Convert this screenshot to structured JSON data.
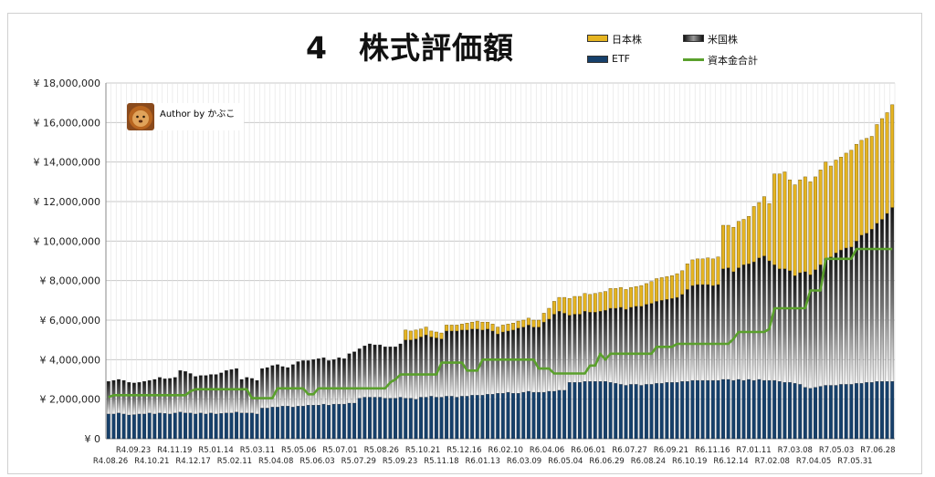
{
  "title": "4　株式評価額",
  "legend": {
    "japan": "日本株",
    "us": "米国株",
    "etf": "ETF",
    "capital": "資本金合計"
  },
  "author": {
    "label": "Author by かぶこ",
    "avatar_icon": "lion-avatar-icon"
  },
  "colors": {
    "japan": "#e5b421",
    "us_dark": "#1a1a1a",
    "us_light": "#f2f2f2",
    "etf": "#16406b",
    "capital": "#5aa02c"
  },
  "chart_data": {
    "type": "bar",
    "stacked": true,
    "ylim": [
      0,
      18000000
    ],
    "y_ticks": [
      "¥ 0",
      "¥ 2,000,000",
      "¥ 4,000,000",
      "¥ 6,000,000",
      "¥ 8,000,000",
      "¥ 10,000,000",
      "¥ 12,000,000",
      "¥ 14,000,000",
      "¥ 16,000,000",
      "¥ 18,000,000"
    ],
    "x_tick_labels": {
      "row1": [
        "R4.09.23",
        "R4.11.19",
        "R5.01.14",
        "R5.03.11",
        "R5.05.06",
        "R5.07.01",
        "R5.08.26",
        "R5.10.21",
        "R5.12.16",
        "R6.02.10",
        "R6.04.06",
        "R6.06.01",
        "R6.07.27",
        "R6.09.21",
        "R6.11.16",
        "R7.01.11",
        "R7.03.08",
        "R7.05.03",
        "R7.06.28"
      ],
      "row2": [
        "R4.08.26",
        "R4.10.21",
        "R4.12.17",
        "R5.02.11",
        "R5.04.08",
        "R5.06.03",
        "R5.07.29",
        "R5.09.23",
        "R5.11.18",
        "R6.01.13",
        "R6.03.09",
        "R6.05.04",
        "R6.06.29",
        "R6.08.24",
        "R6.10.19",
        "R6.12.14",
        "R7.02.08",
        "R7.04.05",
        "R7.05.31"
      ]
    },
    "series": [
      {
        "name": "ETF",
        "values": [
          1250000,
          1250000,
          1300000,
          1250000,
          1200000,
          1220000,
          1250000,
          1250000,
          1300000,
          1250000,
          1300000,
          1280000,
          1250000,
          1300000,
          1350000,
          1300000,
          1300000,
          1250000,
          1300000,
          1250000,
          1300000,
          1250000,
          1280000,
          1300000,
          1300000,
          1350000,
          1300000,
          1300000,
          1300000,
          1250000,
          1550000,
          1550000,
          1600000,
          1600000,
          1650000,
          1650000,
          1600000,
          1650000,
          1650000,
          1700000,
          1700000,
          1700000,
          1750000,
          1700000,
          1750000,
          1750000,
          1750000,
          1800000,
          1800000,
          2050000,
          2100000,
          2100000,
          2100000,
          2100000,
          2050000,
          2050000,
          2050000,
          2100000,
          2050000,
          2050000,
          2000000,
          2100000,
          2100000,
          2150000,
          2100000,
          2100000,
          2150000,
          2150000,
          2100000,
          2150000,
          2150000,
          2200000,
          2200000,
          2200000,
          2250000,
          2250000,
          2300000,
          2300000,
          2350000,
          2300000,
          2300000,
          2350000,
          2400000,
          2350000,
          2350000,
          2350000,
          2400000,
          2400000,
          2450000,
          2450000,
          2850000,
          2850000,
          2850000,
          2900000,
          2900000,
          2900000,
          2900000,
          2900000,
          2850000,
          2800000,
          2750000,
          2700000,
          2750000,
          2750000,
          2700000,
          2750000,
          2750000,
          2800000,
          2800000,
          2850000,
          2850000,
          2850000,
          2900000,
          2900000,
          2950000,
          2950000,
          2950000,
          2950000,
          2950000,
          2950000,
          3000000,
          3000000,
          2950000,
          3000000,
          2950000,
          3000000,
          2950000,
          3000000,
          2950000,
          2950000,
          2950000,
          2900000,
          2850000,
          2850000,
          2800000,
          2750000,
          2600000,
          2550000,
          2600000,
          2650000,
          2700000,
          2700000,
          2700000,
          2750000,
          2750000,
          2750000,
          2800000,
          2800000,
          2850000,
          2850000,
          2900000,
          2900000,
          2900000,
          2900000
        ]
      },
      {
        "name": "米国株",
        "values": [
          1650000,
          1700000,
          1700000,
          1700000,
          1650000,
          1600000,
          1600000,
          1650000,
          1650000,
          1750000,
          1800000,
          1750000,
          1800000,
          1800000,
          2100000,
          2100000,
          2000000,
          1900000,
          1900000,
          1950000,
          1950000,
          2000000,
          2050000,
          2150000,
          2200000,
          2200000,
          1700000,
          1800000,
          1750000,
          1700000,
          2000000,
          2050000,
          2100000,
          2150000,
          2000000,
          1950000,
          2150000,
          2250000,
          2300000,
          2250000,
          2300000,
          2350000,
          2350000,
          2250000,
          2250000,
          2350000,
          2300000,
          2500000,
          2600000,
          2500000,
          2600000,
          2700000,
          2650000,
          2650000,
          2600000,
          2600000,
          2600000,
          2700000,
          2950000,
          2950000,
          3050000,
          3050000,
          3150000,
          3000000,
          3000000,
          2950000,
          3300000,
          3300000,
          3350000,
          3350000,
          3350000,
          3350000,
          3350000,
          3300000,
          3300000,
          3200000,
          3000000,
          3100000,
          3100000,
          3200000,
          3300000,
          3300000,
          3350000,
          3300000,
          3300000,
          3550000,
          3650000,
          3900000,
          4000000,
          3900000,
          3400000,
          3450000,
          3450000,
          3550000,
          3500000,
          3500000,
          3550000,
          3600000,
          3750000,
          3800000,
          3900000,
          3850000,
          3900000,
          3950000,
          4000000,
          4050000,
          4100000,
          4150000,
          4200000,
          4200000,
          4250000,
          4300000,
          4400000,
          4650000,
          4800000,
          4850000,
          4850000,
          4850000,
          4800000,
          4850000,
          5600000,
          5650000,
          5500000,
          5650000,
          5850000,
          5850000,
          6000000,
          6150000,
          6300000,
          6050000,
          5850000,
          5700000,
          5750000,
          5650000,
          5450000,
          5650000,
          5850000,
          5750000,
          5950000,
          6150000,
          6400000,
          6500000,
          6700000,
          6800000,
          6900000,
          6950000,
          7200000,
          7500000,
          7550000,
          7750000,
          8000000,
          8200000,
          8500000,
          8800000
        ]
      },
      {
        "name": "日本株",
        "values": [
          0,
          0,
          0,
          0,
          0,
          0,
          0,
          0,
          0,
          0,
          0,
          0,
          0,
          0,
          0,
          0,
          0,
          0,
          0,
          0,
          0,
          0,
          0,
          0,
          0,
          0,
          0,
          0,
          0,
          0,
          0,
          0,
          0,
          0,
          0,
          0,
          0,
          0,
          0,
          0,
          0,
          0,
          0,
          0,
          0,
          0,
          0,
          0,
          0,
          0,
          0,
          0,
          0,
          0,
          0,
          0,
          0,
          0,
          500000,
          450000,
          450000,
          400000,
          400000,
          300000,
          300000,
          300000,
          300000,
          300000,
          300000,
          300000,
          350000,
          350000,
          400000,
          400000,
          350000,
          350000,
          350000,
          350000,
          350000,
          350000,
          350000,
          350000,
          350000,
          350000,
          350000,
          450000,
          550000,
          650000,
          700000,
          800000,
          850000,
          900000,
          900000,
          900000,
          900000,
          950000,
          950000,
          950000,
          1000000,
          1000000,
          1000000,
          1000000,
          1000000,
          1000000,
          1050000,
          1050000,
          1100000,
          1150000,
          1150000,
          1150000,
          1150000,
          1200000,
          1200000,
          1300000,
          1300000,
          1300000,
          1300000,
          1350000,
          1350000,
          1400000,
          2200000,
          2150000,
          2250000,
          2350000,
          2300000,
          2400000,
          2800000,
          2800000,
          3000000,
          2900000,
          4600000,
          4800000,
          4900000,
          4600000,
          4600000,
          4700000,
          4800000,
          4700000,
          4700000,
          4800000,
          4900000,
          4600000,
          4700000,
          4700000,
          4800000,
          4900000,
          4900000,
          4800000,
          4800000,
          4700000,
          5000000,
          5100000,
          5100000,
          5200000,
          5300000
        ]
      },
      {
        "name": "資本金合計",
        "type": "line",
        "values": [
          2100000,
          2200000,
          2200000,
          2200000,
          2200000,
          2200000,
          2200000,
          2200000,
          2200000,
          2200000,
          2200000,
          2200000,
          2200000,
          2200000,
          2200000,
          2200000,
          2400000,
          2500000,
          2500000,
          2500000,
          2500000,
          2500000,
          2500000,
          2500000,
          2500000,
          2500000,
          2500000,
          2500000,
          2050000,
          2050000,
          2050000,
          2050000,
          2050000,
          2550000,
          2550000,
          2550000,
          2550000,
          2550000,
          2550000,
          2250000,
          2250000,
          2550000,
          2550000,
          2550000,
          2550000,
          2550000,
          2550000,
          2550000,
          2550000,
          2550000,
          2550000,
          2550000,
          2550000,
          2550000,
          2550000,
          2850000,
          3000000,
          3250000,
          3250000,
          3250000,
          3250000,
          3250000,
          3250000,
          3250000,
          3250000,
          3850000,
          3850000,
          3850000,
          3850000,
          3850000,
          3450000,
          3450000,
          3450000,
          4000000,
          4000000,
          4000000,
          4000000,
          4000000,
          4000000,
          4000000,
          4000000,
          4000000,
          4000000,
          4000000,
          3550000,
          3550000,
          3550000,
          3300000,
          3300000,
          3300000,
          3300000,
          3300000,
          3300000,
          3300000,
          3700000,
          3700000,
          4300000,
          4000000,
          4300000,
          4300000,
          4300000,
          4300000,
          4300000,
          4300000,
          4300000,
          4300000,
          4300000,
          4650000,
          4650000,
          4650000,
          4650000,
          4800000,
          4800000,
          4800000,
          4800000,
          4800000,
          4800000,
          4800000,
          4800000,
          4800000,
          4800000,
          4800000,
          5050000,
          5400000,
          5400000,
          5400000,
          5400000,
          5400000,
          5400000,
          5550000,
          6600000,
          6600000,
          6600000,
          6600000,
          6600000,
          6600000,
          6600000,
          7500000,
          7500000,
          7500000,
          9100000,
          9100000,
          9100000,
          9100000,
          9100000,
          9100000,
          9600000,
          9600000,
          9600000,
          9600000,
          9600000,
          9600000,
          9600000,
          9600000,
          10500000,
          10500000,
          10500000,
          10500000
        ]
      }
    ],
    "xlabel": "",
    "ylabel": "",
    "grid": true,
    "legend_position": "top-right"
  }
}
